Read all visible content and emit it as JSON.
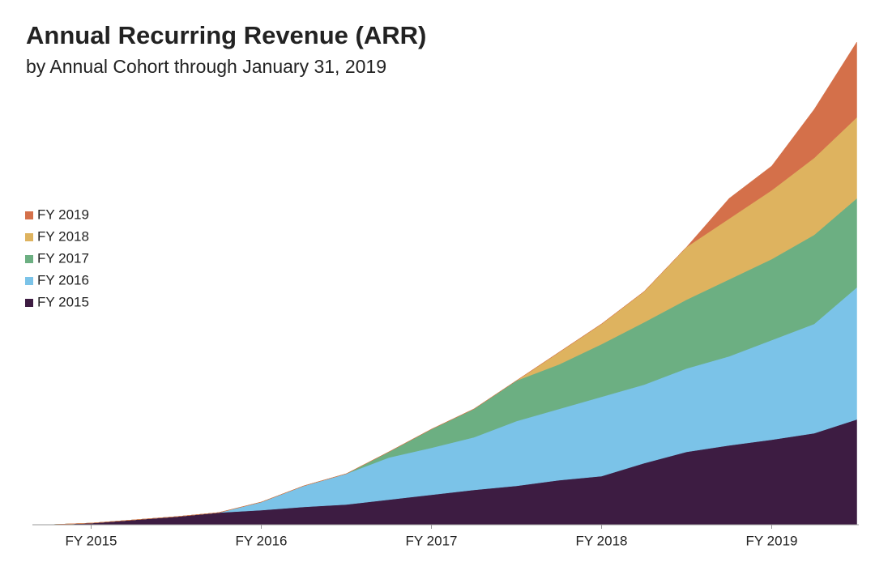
{
  "chart_data": {
    "type": "stacked-area",
    "title": "Annual Recurring Revenue (ARR)",
    "subtitle": "by Annual Cohort through January 31, 2019",
    "categories": [
      null,
      "FY 2015",
      null,
      null,
      null,
      "FY 2016",
      null,
      null,
      null,
      "FY 2017",
      null,
      null,
      null,
      "FY 2018",
      null,
      null,
      null,
      "FY 2019",
      null,
      null
    ],
    "legend": "left",
    "series": [
      {
        "name": "FY 2015",
        "color": "#3d1c42",
        "values": [
          0,
          2,
          6,
          10,
          15,
          18,
          22,
          25,
          31,
          37,
          43,
          48,
          55,
          60,
          76,
          90,
          98,
          105,
          113,
          130
        ]
      },
      {
        "name": "FY 2016",
        "color": "#7bc3e8",
        "values": [
          0,
          0,
          0,
          0,
          0,
          10,
          26,
          38,
          52,
          58,
          65,
          80,
          88,
          98,
          97,
          103,
          110,
          123,
          135,
          163
        ]
      },
      {
        "name": "FY 2017",
        "color": "#6caf82",
        "values": [
          0,
          0,
          0,
          0,
          0,
          0,
          0,
          0,
          7,
          23,
          35,
          50,
          55,
          65,
          77,
          85,
          95,
          100,
          110,
          110
        ]
      },
      {
        "name": "FY 2018",
        "color": "#deb35f",
        "values": [
          0,
          0,
          0,
          0,
          0,
          0,
          0,
          0,
          0,
          0,
          0,
          0,
          15,
          25,
          38,
          65,
          75,
          85,
          95,
          100
        ]
      },
      {
        "name": "FY 2019",
        "color": "#d4704a",
        "values": [
          0,
          0,
          0,
          0,
          0,
          0,
          0,
          0,
          0,
          0,
          0,
          0,
          0,
          0,
          0,
          0,
          25,
          30,
          60,
          93
        ]
      }
    ]
  }
}
